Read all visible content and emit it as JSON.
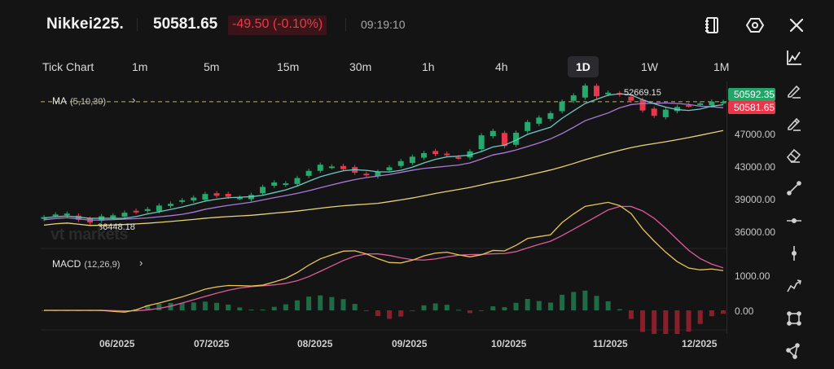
{
  "header": {
    "symbol": "Nikkei225.",
    "price": "50581.65",
    "change": "-49.50 (-0.10%)",
    "time": "09:19:10",
    "icons": [
      "notebook-icon",
      "settings-hexagon-icon",
      "close-icon"
    ]
  },
  "timeframes": [
    {
      "label": "Tick Chart",
      "active": false
    },
    {
      "label": "1m",
      "active": false
    },
    {
      "label": "5m",
      "active": false
    },
    {
      "label": "15m",
      "active": false
    },
    {
      "label": "30m",
      "active": false
    },
    {
      "label": "1h",
      "active": false
    },
    {
      "label": "4h",
      "active": false
    },
    {
      "label": "1D",
      "active": true
    },
    {
      "label": "1W",
      "active": false
    },
    {
      "label": "1M",
      "active": false
    }
  ],
  "main_indicator": {
    "name": "MA",
    "params": "(5,10,30)"
  },
  "sub_indicator": {
    "name": "MACD",
    "params": "(12,26,9)"
  },
  "price_axis": {
    "labels": [
      "47000.00",
      "43000.00",
      "39000.00",
      "36000.00"
    ],
    "bid_tag": "50592.35",
    "last_tag": "50581.65"
  },
  "macd_axis": {
    "labels": [
      "1000.00",
      "0.00"
    ]
  },
  "annotations": {
    "high": "52669.15",
    "low": "36448.18"
  },
  "watermark": "vt markets",
  "x_axis": {
    "labels": [
      "06/2025",
      "07/2025",
      "08/2025",
      "09/2025",
      "10/2025",
      "11/2025",
      "12/2025"
    ]
  },
  "colors": {
    "up": "#26a96c",
    "down": "#e8364a",
    "ma5": "#6fc7c2",
    "ma10": "#a97ad8",
    "ma30": "#e8d27a",
    "macd_dif": "#e8c45a",
    "macd_dea": "#e05a9a",
    "hist_up": "#1e6b45",
    "hist_down": "#8a1f2c"
  },
  "toolbar": {
    "tools": [
      "indicator-chart-icon",
      "pencil-icon",
      "pencil-alt-icon",
      "eraser-icon",
      "trend-line-icon",
      "horizontal-line-icon",
      "vertical-line-icon",
      "polyline-icon",
      "rectangle-icon",
      "triangle-icon"
    ]
  },
  "chart_data": {
    "type": "candlestick",
    "title": "Nikkei225. 1D",
    "x_labels": [
      "06/2025",
      "07/2025",
      "08/2025",
      "09/2025",
      "10/2025",
      "11/2025",
      "12/2025"
    ],
    "ylim": [
      35000,
      53500
    ],
    "y_ticks": [
      36000,
      39000,
      43000,
      47000
    ],
    "high": 52669.15,
    "low": 36448.18,
    "last": 50581.65,
    "close_series": [
      37600,
      37900,
      38000,
      37300,
      37000,
      37700,
      37800,
      38100,
      38200,
      38500,
      38900,
      39100,
      39500,
      39800,
      40200,
      40000,
      39900,
      39800,
      40100,
      41000,
      41500,
      41400,
      42000,
      42800,
      43500,
      43300,
      43000,
      42600,
      42400,
      42700,
      43200,
      43900,
      44400,
      44800,
      44700,
      44600,
      44300,
      45000,
      46800,
      47300,
      45600,
      47100,
      48300,
      48800,
      49300,
      50600,
      51300,
      52400,
      51200,
      51600,
      51400,
      50700,
      49600,
      49000,
      49700,
      50000,
      50200,
      50400,
      50600,
      50581.65
    ],
    "macd": {
      "ylim": [
        -600,
        1500
      ],
      "y_ticks": [
        0,
        1000
      ]
    }
  }
}
